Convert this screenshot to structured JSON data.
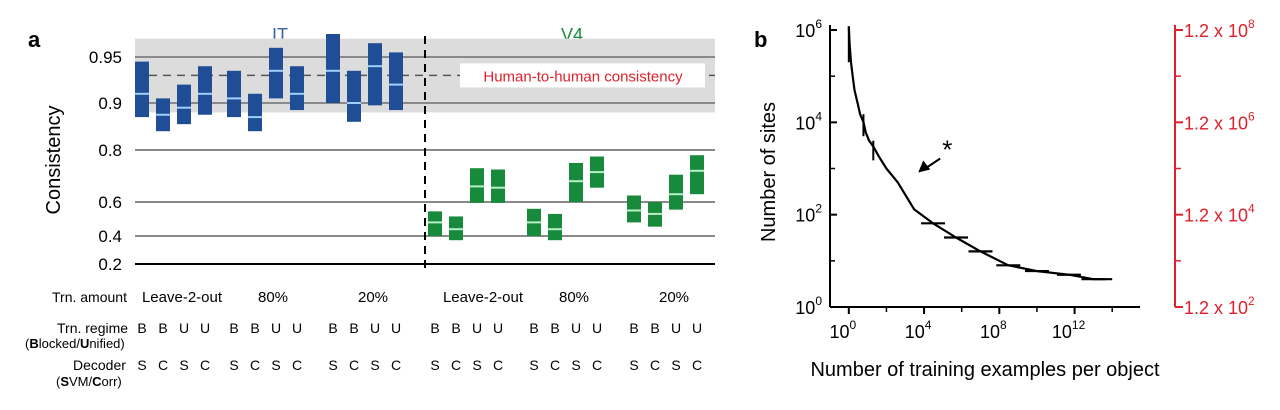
{
  "panel_a": {
    "label": "a",
    "ylabel": "Consistency",
    "yticks": [
      "0.95",
      "0.9",
      "0.8",
      "0.6",
      "0.4",
      "0.2"
    ],
    "groups": [
      {
        "name": "IT",
        "color": "#1f4e96"
      },
      {
        "name": "V4",
        "color": "#178a3c"
      }
    ],
    "human_consistency_label": "Human-to-human consistency",
    "row_labels": {
      "trn_amount": "Trn. amount",
      "trn_regime_1": "Trn. regime",
      "trn_regime_2": [
        "(",
        "B",
        "locked/",
        "U",
        "nified)"
      ],
      "decoder_1": "Decoder",
      "decoder_2": [
        "(",
        "S",
        "VM/",
        "C",
        "orr)"
      ]
    },
    "amounts": [
      "Leave-2-out",
      "80%",
      "20%",
      "Leave-2-out",
      "80%",
      "20%"
    ],
    "regimes": [
      "B",
      "B",
      "U",
      "U"
    ],
    "decoders": [
      "S",
      "C",
      "S",
      "C"
    ]
  },
  "panel_b": {
    "label": "b",
    "ylabel": "Number of sites",
    "xlabel": "Number of training examples per object",
    "xticks": [
      {
        "base": "10",
        "exp": "0"
      },
      {
        "base": "10",
        "exp": "4"
      },
      {
        "base": "10",
        "exp": "8"
      },
      {
        "base": "10",
        "exp": "12"
      }
    ],
    "yticks": [
      {
        "base": "10",
        "exp": "0"
      },
      {
        "base": "10",
        "exp": "2"
      },
      {
        "base": "10",
        "exp": "4"
      },
      {
        "base": "10",
        "exp": "6"
      }
    ],
    "right_yticks": [
      {
        "base": "1.2 x 10",
        "exp": "2"
      },
      {
        "base": "1.2 x 10",
        "exp": "4"
      },
      {
        "base": "1.2 x 10",
        "exp": "6"
      },
      {
        "base": "1.2 x 10",
        "exp": "8"
      }
    ],
    "annotation": "*",
    "right_axis_color": "#e0202a"
  },
  "chart_data": [
    {
      "type": "box",
      "title": "",
      "ylabel": "Consistency",
      "ylim": [
        0.2,
        0.97
      ],
      "human_consistency": {
        "mean": 0.93,
        "range": [
          0.88,
          0.97
        ]
      },
      "series": [
        {
          "name": "IT",
          "color": "#1f4e96",
          "median_color": "#9fd0ff",
          "boxes": [
            {
              "amount": "Leave-2-out",
              "regime": "B",
              "decoder": "S",
              "low": 0.87,
              "high": 0.945,
              "median": 0.91
            },
            {
              "amount": "Leave-2-out",
              "regime": "B",
              "decoder": "C",
              "low": 0.84,
              "high": 0.905,
              "median": 0.875
            },
            {
              "amount": "Leave-2-out",
              "regime": "U",
              "decoder": "S",
              "low": 0.855,
              "high": 0.92,
              "median": 0.89
            },
            {
              "amount": "Leave-2-out",
              "regime": "U",
              "decoder": "C",
              "low": 0.875,
              "high": 0.94,
              "median": 0.91
            },
            {
              "amount": "80%",
              "regime": "B",
              "decoder": "S",
              "low": 0.87,
              "high": 0.935,
              "median": 0.905
            },
            {
              "amount": "80%",
              "regime": "B",
              "decoder": "C",
              "low": 0.84,
              "high": 0.91,
              "median": 0.87
            },
            {
              "amount": "80%",
              "regime": "U",
              "decoder": "S",
              "low": 0.905,
              "high": 0.96,
              "median": 0.935
            },
            {
              "amount": "80%",
              "regime": "U",
              "decoder": "C",
              "low": 0.885,
              "high": 0.94,
              "median": 0.91
            },
            {
              "amount": "20%",
              "regime": "B",
              "decoder": "S",
              "low": 0.9,
              "high": 0.975,
              "median": 0.935
            },
            {
              "amount": "20%",
              "regime": "B",
              "decoder": "C",
              "low": 0.86,
              "high": 0.935,
              "median": 0.9
            },
            {
              "amount": "20%",
              "regime": "U",
              "decoder": "S",
              "low": 0.895,
              "high": 0.965,
              "median": 0.94
            },
            {
              "amount": "20%",
              "regime": "U",
              "decoder": "C",
              "low": 0.885,
              "high": 0.955,
              "median": 0.92
            }
          ]
        },
        {
          "name": "V4",
          "color": "#178a3c",
          "median_color": "#b8f0c8",
          "boxes": [
            {
              "amount": "Leave-2-out",
              "regime": "B",
              "decoder": "S",
              "low": 0.4,
              "high": 0.545,
              "median": 0.48
            },
            {
              "amount": "Leave-2-out",
              "regime": "B",
              "decoder": "C",
              "low": 0.37,
              "high": 0.515,
              "median": 0.44
            },
            {
              "amount": "Leave-2-out",
              "regime": "U",
              "decoder": "S",
              "low": 0.595,
              "high": 0.73,
              "median": 0.66
            },
            {
              "amount": "Leave-2-out",
              "regime": "U",
              "decoder": "C",
              "low": 0.595,
              "high": 0.725,
              "median": 0.655
            },
            {
              "amount": "80%",
              "regime": "B",
              "decoder": "S",
              "low": 0.4,
              "high": 0.56,
              "median": 0.48
            },
            {
              "amount": "80%",
              "regime": "B",
              "decoder": "C",
              "low": 0.37,
              "high": 0.53,
              "median": 0.44
            },
            {
              "amount": "80%",
              "regime": "U",
              "decoder": "S",
              "low": 0.6,
              "high": 0.75,
              "median": 0.68
            },
            {
              "amount": "80%",
              "regime": "U",
              "decoder": "C",
              "low": 0.655,
              "high": 0.775,
              "median": 0.715
            },
            {
              "amount": "20%",
              "regime": "B",
              "decoder": "S",
              "low": 0.48,
              "high": 0.625,
              "median": 0.55
            },
            {
              "amount": "20%",
              "regime": "B",
              "decoder": "C",
              "low": 0.455,
              "high": 0.6,
              "median": 0.53
            },
            {
              "amount": "20%",
              "regime": "U",
              "decoder": "S",
              "low": 0.555,
              "high": 0.705,
              "median": 0.63
            },
            {
              "amount": "20%",
              "regime": "U",
              "decoder": "C",
              "low": 0.63,
              "high": 0.78,
              "median": 0.72
            }
          ]
        }
      ]
    },
    {
      "type": "line",
      "title": "",
      "xlabel": "Number of training examples per object",
      "ylabel": "Number of sites",
      "x_scale": "log10",
      "y_scale": "log10",
      "xlim": [
        0.1,
        3000000000000000.0
      ],
      "ylim": [
        1,
        1000000.0
      ],
      "right_ylim": [
        120,
        120000000.0
      ],
      "series": [
        {
          "name": "",
          "color": "#000000",
          "x": [
            1,
            1.1,
            1.3,
            1.6,
            2,
            3,
            4,
            6,
            8,
            12,
            20,
            40,
            100,
            400,
            3000,
            30000,
            500000,
            10000000.0,
            300000000.0,
            10000000000.0,
            500000000000.0,
            10000000000000.0,
            100000000000000.0
          ],
          "y": [
            1200000,
            500000,
            200000,
            100000,
            50000,
            25000,
            15000,
            10000,
            6000,
            4000,
            3000,
            1800,
            1000,
            500,
            130,
            65,
            32,
            16,
            8,
            6,
            5,
            4,
            4
          ]
        }
      ],
      "error_bars": [
        {
          "x": 1,
          "y_low": 200000,
          "y_high": 1200000
        },
        {
          "x": 6,
          "y_low": 5000,
          "y_high": 15000
        },
        {
          "x": 20,
          "y_low": 1500,
          "y_high": 4000
        }
      ],
      "annotation": {
        "text": "*",
        "x": 3000,
        "y": 1000
      }
    }
  ]
}
